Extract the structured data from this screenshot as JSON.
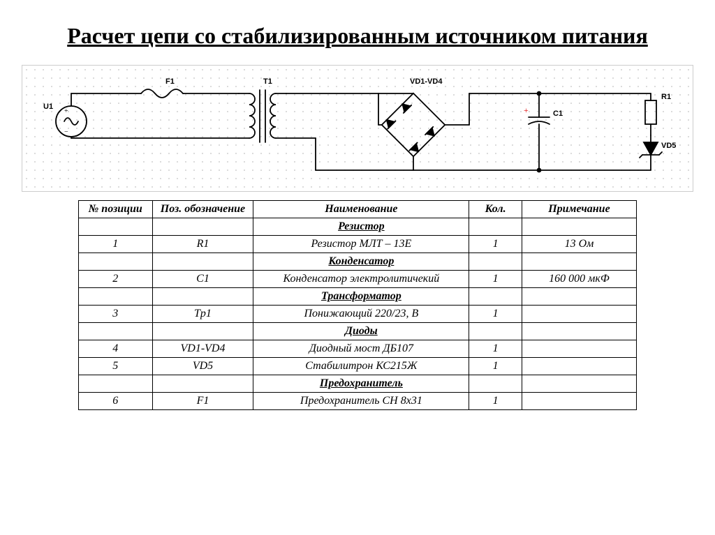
{
  "title": "Расчет цепи со стабилизированным источником питания",
  "circuit": {
    "stroke": "#000000",
    "stroke_width": 1.8,
    "label_font": "Arial, sans-serif",
    "label_size": 11,
    "label_weight": "bold",
    "labels": {
      "U1": "U1",
      "F1": "F1",
      "T1": "T1",
      "VD": "VD1-VD4",
      "C1": "C1",
      "R1": "R1",
      "VD5": "VD5",
      "plus": "+"
    }
  },
  "table": {
    "headers": {
      "pos": "№ позиции",
      "ref": "Поз. обозначение",
      "name": "Наименование",
      "qty": "Кол.",
      "note": "Примечание"
    },
    "sections": [
      {
        "title": "Резистор",
        "rows": [
          {
            "pos": "1",
            "ref": "R1",
            "name": "Резистор МЛТ – 13Е",
            "qty": "1",
            "note": "13 Ом"
          }
        ]
      },
      {
        "title": "Конденсатор",
        "rows": [
          {
            "pos": "2",
            "ref": "C1",
            "name": "Конденсатор электролитичекий",
            "qty": "1",
            "note": "160 000 мкФ"
          }
        ]
      },
      {
        "title": "Трансформатор",
        "rows": [
          {
            "pos": "3",
            "ref": "Tp1",
            "name": "Понижающий 220/23, В",
            "qty": "1",
            "note": ""
          }
        ]
      },
      {
        "title": "Диоды",
        "rows": [
          {
            "pos": "4",
            "ref": "VD1-VD4",
            "name": "Диодный мост ДБ107",
            "qty": "1",
            "note": ""
          },
          {
            "pos": "5",
            "ref": "VD5",
            "name": "Стабилитрон КС215Ж",
            "qty": "1",
            "note": ""
          }
        ]
      },
      {
        "title": "Предохранитель",
        "rows": [
          {
            "pos": "6",
            "ref": "F1",
            "name": "Предохранитель СН 8x31",
            "qty": "1",
            "note": ""
          }
        ]
      }
    ]
  }
}
